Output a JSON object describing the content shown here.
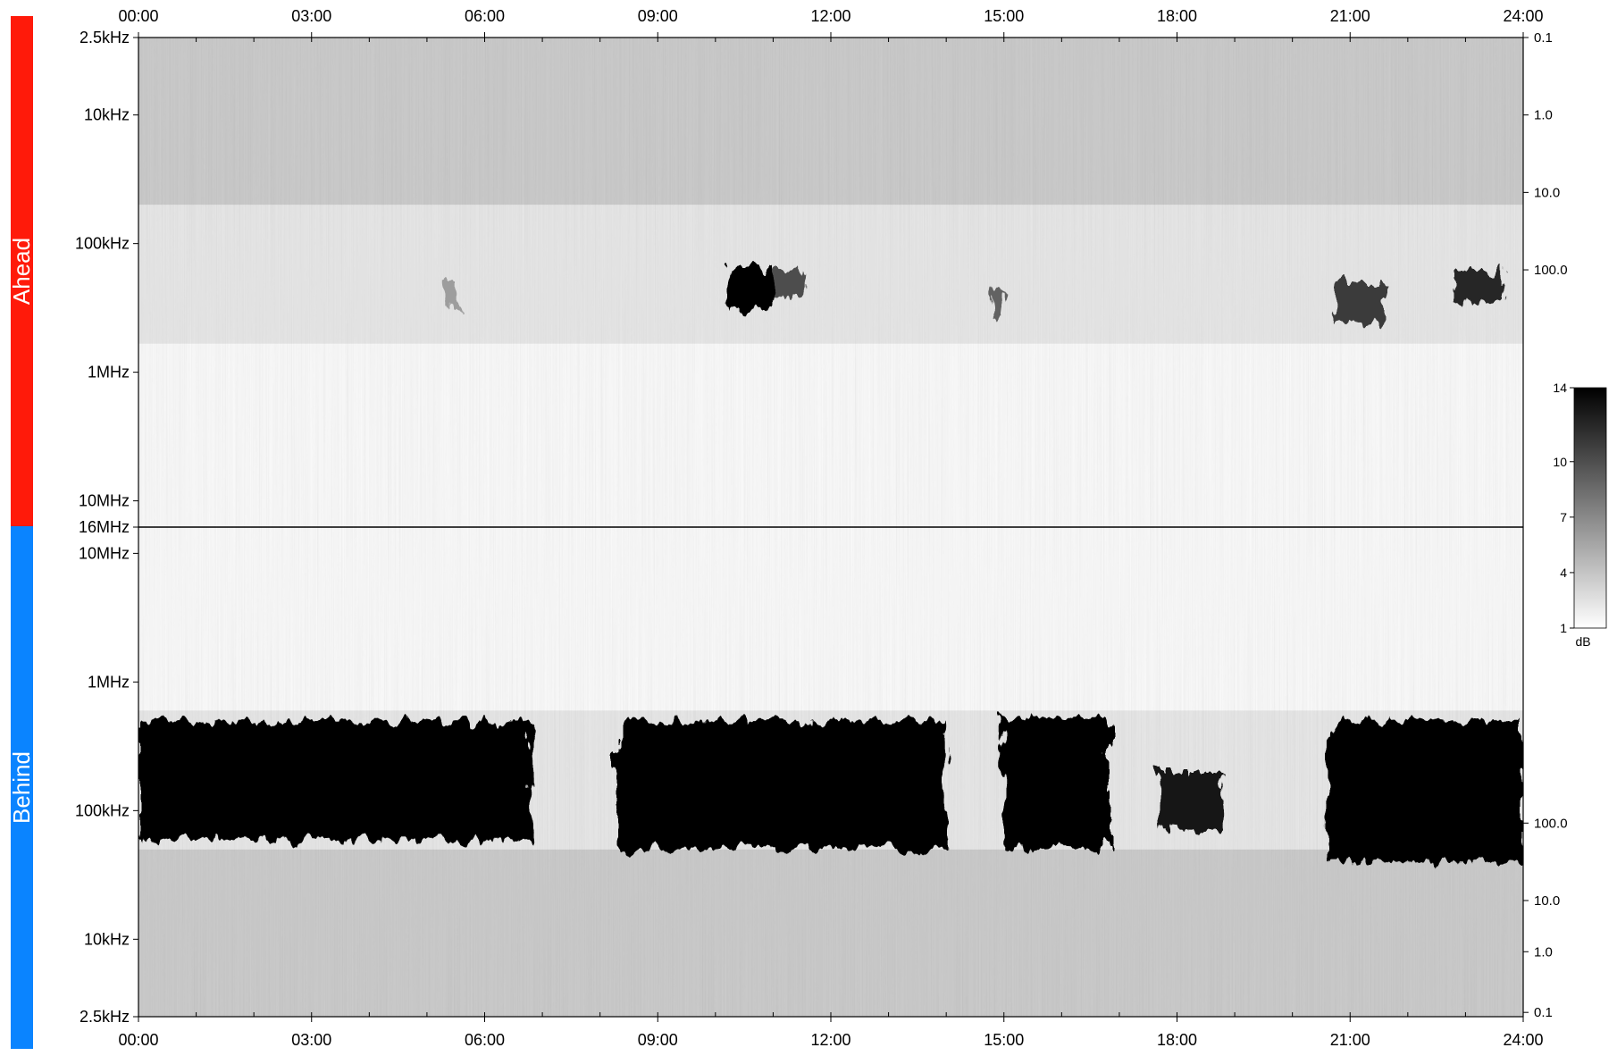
{
  "panels": [
    {
      "label": "Ahead",
      "color": "#ff1a0a",
      "orientation": "frequency-increasing-downward"
    },
    {
      "label": "Behind",
      "color": "#0a84ff",
      "orientation": "frequency-increasing-upward"
    }
  ],
  "colorbar": {
    "unit": "dB",
    "ticks": [
      "14",
      "10",
      "7",
      "4",
      "1"
    ],
    "tick_values": [
      14,
      10,
      7,
      4,
      1
    ],
    "range": [
      1,
      14
    ],
    "colormap": "white-to-black"
  },
  "chart_data": {
    "type": "heatmap",
    "x_ticks": [
      "00:00",
      "03:00",
      "06:00",
      "09:00",
      "12:00",
      "15:00",
      "18:00",
      "21:00",
      "24:00"
    ],
    "x_hours": [
      0,
      3,
      6,
      9,
      12,
      15,
      18,
      21,
      24
    ],
    "xlim": [
      0,
      24
    ],
    "panels": [
      {
        "name": "Ahead",
        "y_ticks": [
          "2.5kHz",
          "10kHz",
          "100kHz",
          "1MHz",
          "10MHz",
          "16MHz"
        ],
        "y_values_hz": [
          2500,
          10000,
          100000,
          1000000,
          10000000,
          16000000
        ],
        "ylim_hz": [
          2500,
          16000000
        ],
        "y_scale": "log",
        "right_ticks": [
          "0.1",
          "1.0",
          "10.0",
          "100.0"
        ],
        "right_tick_values_hz": [
          2500,
          10000,
          40000,
          160000
        ],
        "features": [
          {
            "t_start": 10.2,
            "t_end": 11.0,
            "f_low_hz": 150000,
            "f_high_hz": 320000,
            "intensity": 14
          },
          {
            "t_start": 11.0,
            "t_end": 11.5,
            "f_low_hz": 160000,
            "f_high_hz": 260000,
            "intensity": 10
          },
          {
            "t_start": 22.8,
            "t_end": 23.7,
            "f_low_hz": 160000,
            "f_high_hz": 290000,
            "intensity": 12
          },
          {
            "t_start": 20.7,
            "t_end": 21.6,
            "f_low_hz": 200000,
            "f_high_hz": 420000,
            "intensity": 11
          },
          {
            "t_start": 5.3,
            "t_end": 5.5,
            "f_low_hz": 200000,
            "f_high_hz": 300000,
            "intensity": 6
          },
          {
            "t_start": 14.8,
            "t_end": 15.0,
            "f_low_hz": 230000,
            "f_high_hz": 380000,
            "intensity": 9
          }
        ]
      },
      {
        "name": "Behind",
        "y_ticks": [
          "10MHz",
          "1MHz",
          "100kHz",
          "10kHz",
          "2.5kHz"
        ],
        "y_values_hz": [
          10000000,
          1000000,
          100000,
          10000,
          2500
        ],
        "ylim_hz": [
          2500,
          16000000
        ],
        "y_scale": "log",
        "right_ticks": [
          "100.0",
          "10.0",
          "1.0",
          "0.1"
        ],
        "right_tick_values_hz": [
          80000,
          20000,
          8000,
          2700
        ],
        "features": [
          {
            "t_start": 0.0,
            "t_end": 6.8,
            "f_low_hz": 60000,
            "f_high_hz": 500000,
            "intensity": 14
          },
          {
            "t_start": 8.3,
            "t_end": 14.0,
            "f_low_hz": 50000,
            "f_high_hz": 500000,
            "intensity": 14
          },
          {
            "t_start": 15.0,
            "t_end": 16.8,
            "f_low_hz": 50000,
            "f_high_hz": 520000,
            "intensity": 14
          },
          {
            "t_start": 17.7,
            "t_end": 18.8,
            "f_low_hz": 70000,
            "f_high_hz": 200000,
            "intensity": 13
          },
          {
            "t_start": 20.6,
            "t_end": 24.0,
            "f_low_hz": 40000,
            "f_high_hz": 500000,
            "intensity": 14
          }
        ]
      }
    ]
  }
}
